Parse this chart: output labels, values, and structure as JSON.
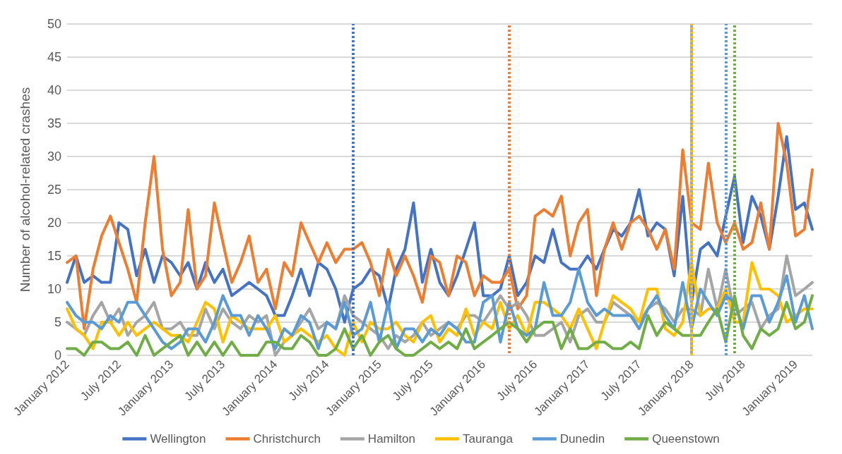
{
  "chart_data": {
    "type": "line",
    "ylabel": "Number of alcohol-related crashes",
    "x": [
      "2012-01",
      "2012-02",
      "2012-03",
      "2012-04",
      "2012-05",
      "2012-06",
      "2012-07",
      "2012-08",
      "2012-09",
      "2012-10",
      "2012-11",
      "2012-12",
      "2013-01",
      "2013-02",
      "2013-03",
      "2013-04",
      "2013-05",
      "2013-06",
      "2013-07",
      "2013-08",
      "2013-09",
      "2013-10",
      "2013-11",
      "2013-12",
      "2014-01",
      "2014-02",
      "2014-03",
      "2014-04",
      "2014-05",
      "2014-06",
      "2014-07",
      "2014-08",
      "2014-09",
      "2014-10",
      "2014-11",
      "2014-12",
      "2015-01",
      "2015-02",
      "2015-03",
      "2015-04",
      "2015-05",
      "2015-06",
      "2015-07",
      "2015-08",
      "2015-09",
      "2015-10",
      "2015-11",
      "2015-12",
      "2016-01",
      "2016-02",
      "2016-03",
      "2016-04",
      "2016-05",
      "2016-06",
      "2016-07",
      "2016-08",
      "2016-09",
      "2016-10",
      "2016-11",
      "2016-12",
      "2017-01",
      "2017-02",
      "2017-03",
      "2017-04",
      "2017-05",
      "2017-06",
      "2017-07",
      "2017-08",
      "2017-09",
      "2017-10",
      "2017-11",
      "2017-12",
      "2018-01",
      "2018-02",
      "2018-03",
      "2018-04",
      "2018-05",
      "2018-06",
      "2018-07",
      "2018-08",
      "2018-09",
      "2018-10",
      "2018-11",
      "2018-12",
      "2019-01",
      "2019-02",
      "2019-03"
    ],
    "series": [
      {
        "name": "Wellington",
        "color": "#4472c4",
        "values": [
          11,
          15,
          11,
          12,
          11,
          11,
          20,
          19,
          12,
          16,
          11,
          15,
          14,
          12,
          14,
          10,
          14,
          11,
          13,
          9,
          10,
          11,
          10,
          9,
          6,
          6,
          9,
          13,
          9,
          14,
          13,
          10,
          5,
          10,
          11,
          13,
          12,
          7,
          13,
          16,
          23,
          11,
          16,
          11,
          9,
          12,
          16,
          20,
          9,
          9,
          10,
          15,
          9,
          11,
          15,
          14,
          19,
          14,
          13,
          13,
          15,
          13,
          16,
          19,
          18,
          20,
          25,
          18,
          20,
          19,
          12,
          24,
          8,
          16,
          17,
          15,
          21,
          27,
          17,
          24,
          21,
          16,
          24,
          33,
          22,
          23,
          19
        ]
      },
      {
        "name": "Christchurch",
        "color": "#ed7d31",
        "values": [
          14,
          15,
          4,
          13,
          18,
          21,
          17,
          13,
          8,
          20,
          30,
          16,
          9,
          11,
          22,
          10,
          12,
          23,
          17,
          11,
          14,
          18,
          11,
          13,
          7,
          14,
          12,
          20,
          17,
          14,
          17,
          14,
          16,
          16,
          17,
          14,
          9,
          16,
          12,
          15,
          12,
          8,
          15,
          14,
          9,
          15,
          14,
          9,
          12,
          11,
          11,
          13,
          7,
          9,
          21,
          22,
          21,
          24,
          15,
          20,
          22,
          9,
          16,
          20,
          16,
          20,
          21,
          19,
          16,
          19,
          13,
          31,
          20,
          19,
          29,
          20,
          17,
          20,
          16,
          17,
          23,
          16,
          35,
          29,
          18,
          19,
          28
        ]
      },
      {
        "name": "Hamilton",
        "color": "#a5a5a5",
        "values": [
          5,
          4,
          3,
          6,
          8,
          5,
          7,
          3,
          5,
          6,
          8,
          4,
          4,
          5,
          3,
          3,
          7,
          4,
          7,
          5,
          4,
          6,
          5,
          6,
          0,
          2,
          3,
          5,
          7,
          4,
          5,
          4,
          9,
          6,
          5,
          4,
          3,
          1,
          3,
          2,
          3,
          5,
          3,
          4,
          5,
          4,
          6,
          6,
          5,
          7,
          9,
          7,
          8,
          6,
          3,
          3,
          4,
          5,
          2,
          6,
          7,
          5,
          5,
          8,
          7,
          6,
          5,
          7,
          8,
          7,
          5,
          7,
          7,
          6,
          13,
          7,
          13,
          6,
          7,
          8,
          4,
          6,
          7,
          15,
          9,
          10,
          11
        ]
      },
      {
        "name": "Tauranga",
        "color": "#ffc000",
        "values": [
          7,
          4,
          3,
          1,
          5,
          5,
          3,
          5,
          3,
          4,
          5,
          4,
          3,
          3,
          2,
          5,
          8,
          7,
          2,
          6,
          5,
          4,
          4,
          4,
          6,
          2,
          3,
          4,
          3,
          2,
          3,
          1,
          0,
          5,
          2,
          5,
          4,
          4,
          5,
          3,
          2,
          5,
          6,
          2,
          4,
          3,
          7,
          3,
          5,
          4,
          8,
          4,
          6,
          3,
          8,
          8,
          7,
          6,
          4,
          7,
          4,
          1,
          5,
          9,
          8,
          7,
          5,
          10,
          10,
          4,
          3,
          5,
          14,
          6,
          7,
          7,
          10,
          5,
          5,
          14,
          10,
          10,
          9,
          5,
          6,
          7,
          7
        ]
      },
      {
        "name": "Dunedin",
        "color": "#5b9bd5",
        "values": [
          8,
          6,
          5,
          5,
          4,
          6,
          5,
          8,
          8,
          6,
          4,
          2,
          1,
          2,
          4,
          4,
          2,
          5,
          9,
          6,
          6,
          3,
          6,
          4,
          1,
          4,
          3,
          6,
          5,
          1,
          5,
          4,
          8,
          3,
          4,
          8,
          2,
          8,
          1,
          4,
          4,
          2,
          4,
          3,
          5,
          4,
          2,
          2,
          8,
          9,
          2,
          8,
          4,
          3,
          4,
          11,
          6,
          6,
          8,
          13,
          8,
          6,
          7,
          6,
          6,
          6,
          4,
          7,
          9,
          6,
          4,
          11,
          4,
          10,
          8,
          6,
          9,
          8,
          4,
          9,
          9,
          5,
          8,
          12,
          5,
          9,
          4
        ]
      },
      {
        "name": "Queenstown",
        "color": "#70ad47",
        "values": [
          1,
          1,
          0,
          2,
          2,
          1,
          1,
          2,
          0,
          3,
          0,
          1,
          2,
          3,
          0,
          2,
          0,
          2,
          0,
          2,
          0,
          0,
          0,
          2,
          2,
          1,
          1,
          3,
          2,
          0,
          0,
          1,
          4,
          1,
          3,
          0,
          2,
          3,
          1,
          0,
          0,
          1,
          2,
          1,
          2,
          1,
          4,
          1,
          2,
          3,
          4,
          5,
          4,
          2,
          4,
          5,
          5,
          1,
          4,
          1,
          1,
          2,
          2,
          1,
          1,
          2,
          1,
          6,
          3,
          5,
          4,
          3,
          3,
          3,
          5,
          7,
          2,
          9,
          3,
          1,
          4,
          3,
          4,
          8,
          4,
          5,
          9
        ]
      }
    ],
    "xlim": [
      "2012-01",
      "2019-03"
    ],
    "xticks": [
      {
        "value": "2012-01",
        "label": "January 2012"
      },
      {
        "value": "2012-07",
        "label": "July 2012"
      },
      {
        "value": "2013-01",
        "label": "January 2013"
      },
      {
        "value": "2013-07",
        "label": "July 2013"
      },
      {
        "value": "2014-01",
        "label": "January 2014"
      },
      {
        "value": "2014-07",
        "label": "July 2014"
      },
      {
        "value": "2015-01",
        "label": "January 2015"
      },
      {
        "value": "2015-07",
        "label": "July 2015"
      },
      {
        "value": "2016-01",
        "label": "January 2016"
      },
      {
        "value": "2016-07",
        "label": "July 2016"
      },
      {
        "value": "2017-01",
        "label": "January 2017"
      },
      {
        "value": "2017-07",
        "label": "July 2017"
      },
      {
        "value": "2018-01",
        "label": "January 2018"
      },
      {
        "value": "2018-07",
        "label": "July 2018"
      },
      {
        "value": "2019-01",
        "label": "January 2019"
      }
    ],
    "ylim": [
      0,
      50
    ],
    "yticks": [
      0,
      5,
      10,
      15,
      20,
      25,
      30,
      35,
      40,
      45,
      50
    ],
    "ref_lines": [
      {
        "axis": "x",
        "value": "2014-10",
        "color": "#4472c4",
        "line_style": "dotted"
      },
      {
        "axis": "x",
        "value": "2016-04",
        "color": "#ed7d31",
        "line_style": "dotted"
      },
      {
        "axis": "x",
        "value": "2018-01",
        "color": "#ffc000",
        "line_style": "dotted"
      },
      {
        "axis": "x",
        "value": "2018-01",
        "color": "#a5a5a5",
        "line_style": "dotted"
      },
      {
        "axis": "x",
        "value": "2018-05",
        "color": "#5b9bd5",
        "line_style": "dotted"
      },
      {
        "axis": "x",
        "value": "2018-06",
        "color": "#70ad47",
        "line_style": "dotted"
      }
    ],
    "grid": "y",
    "legend": "bottom",
    "marker": "none",
    "line_style": "solid"
  }
}
